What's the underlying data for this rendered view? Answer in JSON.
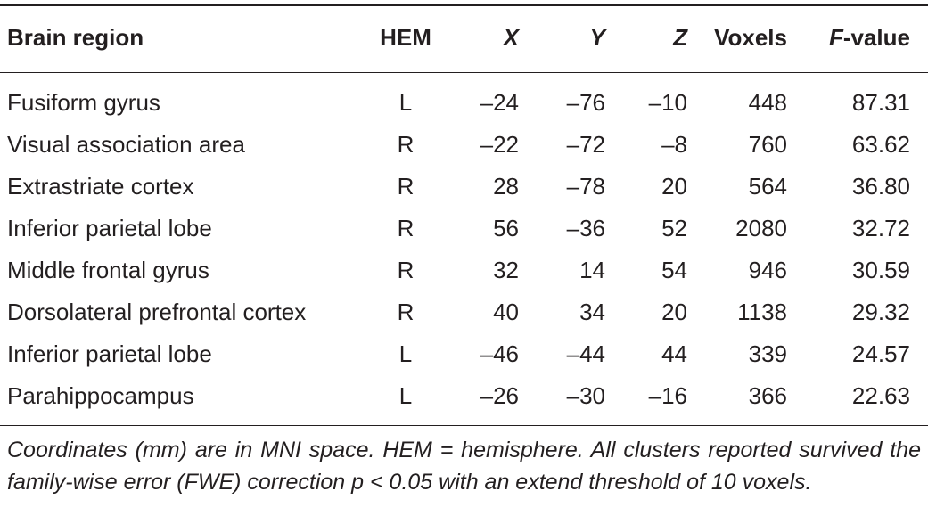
{
  "table": {
    "headers": {
      "region": "Brain region",
      "hem": "HEM",
      "x": "X",
      "y": "Y",
      "z": "Z",
      "voxels": "Voxels",
      "f_italic": "F",
      "f_rest": "-value"
    },
    "rows": [
      {
        "region": "Fusiform gyrus",
        "hem": "L",
        "x": "–24",
        "y": "–76",
        "z": "–10",
        "voxels": "448",
        "f": "87.31"
      },
      {
        "region": "Visual association area",
        "hem": "R",
        "x": "–22",
        "y": "–72",
        "z": "–8",
        "voxels": "760",
        "f": "63.62"
      },
      {
        "region": "Extrastriate cortex",
        "hem": "R",
        "x": "28",
        "y": "–78",
        "z": "20",
        "voxels": "564",
        "f": "36.80"
      },
      {
        "region": "Inferior parietal lobe",
        "hem": "R",
        "x": "56",
        "y": "–36",
        "z": "52",
        "voxels": "2080",
        "f": "32.72"
      },
      {
        "region": "Middle frontal gyrus",
        "hem": "R",
        "x": "32",
        "y": "14",
        "z": "54",
        "voxels": "946",
        "f": "30.59"
      },
      {
        "region": "Dorsolateral prefrontal cortex",
        "hem": "R",
        "x": "40",
        "y": "34",
        "z": "20",
        "voxels": "1138",
        "f": "29.32"
      },
      {
        "region": "Inferior parietal lobe",
        "hem": "L",
        "x": "–46",
        "y": "–44",
        "z": "44",
        "voxels": "339",
        "f": "24.57"
      },
      {
        "region": "Parahippocampus",
        "hem": "L",
        "x": "–26",
        "y": "–30",
        "z": "–16",
        "voxels": "366",
        "f": "22.63"
      }
    ],
    "footnote": "Coordinates (mm) are in MNI space. HEM = hemisphere. All clusters reported survived the family-wise error (FWE) correction p < 0.05 with an extend threshold of 10 voxels."
  }
}
